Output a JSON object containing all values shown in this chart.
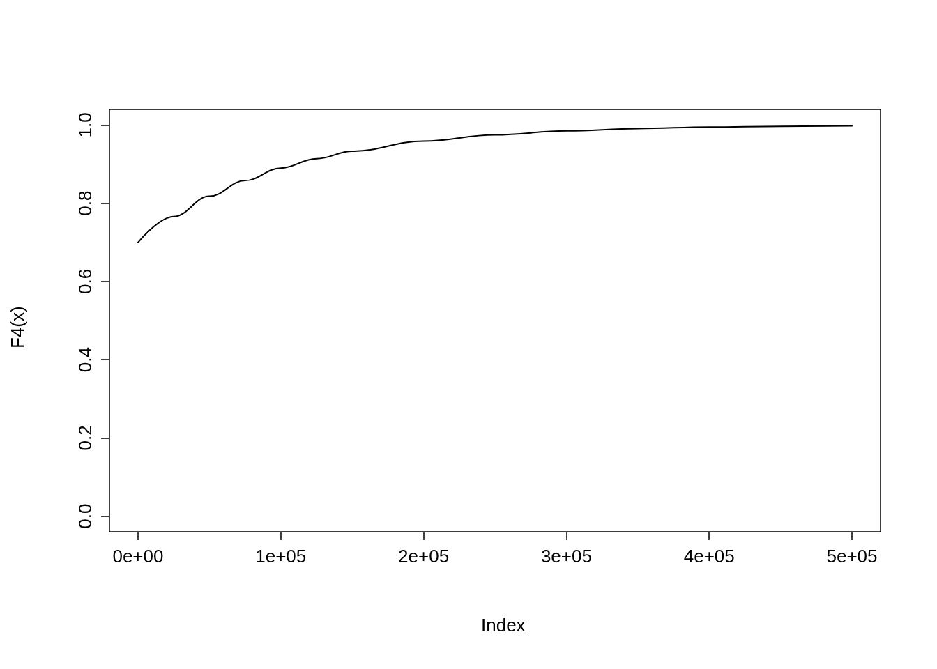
{
  "chart_data": {
    "type": "line",
    "xlabel": "Index",
    "ylabel": "F4(x)",
    "x": [
      0,
      25000,
      50000,
      75000,
      100000,
      125000,
      150000,
      200000,
      250000,
      300000,
      350000,
      400000,
      450000,
      500000
    ],
    "series": [
      {
        "color": "#000000",
        "values": [
          0.7,
          0.766,
          0.818,
          0.858,
          0.89,
          0.914,
          0.933,
          0.959,
          0.975,
          0.985,
          0.991,
          0.995,
          0.997,
          0.998
        ]
      }
    ],
    "xlim": [
      -20000,
      520000
    ],
    "xticks": [
      {
        "value": 0,
        "label": "0e+00"
      },
      {
        "value": 100000,
        "label": "1e+05"
      },
      {
        "value": 200000,
        "label": "2e+05"
      },
      {
        "value": 300000,
        "label": "3e+05"
      },
      {
        "value": 400000,
        "label": "4e+05"
      },
      {
        "value": 500000,
        "label": "5e+05"
      }
    ],
    "ylim": [
      -0.04,
      1.04
    ],
    "yticks": [
      {
        "value": 0,
        "label": "0.0"
      },
      {
        "value": 0.2,
        "label": "0.2"
      },
      {
        "value": 0.4,
        "label": "0.4"
      },
      {
        "value": 0.6,
        "label": "0.6"
      },
      {
        "value": 0.8,
        "label": "0.8"
      },
      {
        "value": 1,
        "label": "1.0"
      }
    ],
    "grid": false,
    "marker": "none",
    "line_style": "solid"
  }
}
